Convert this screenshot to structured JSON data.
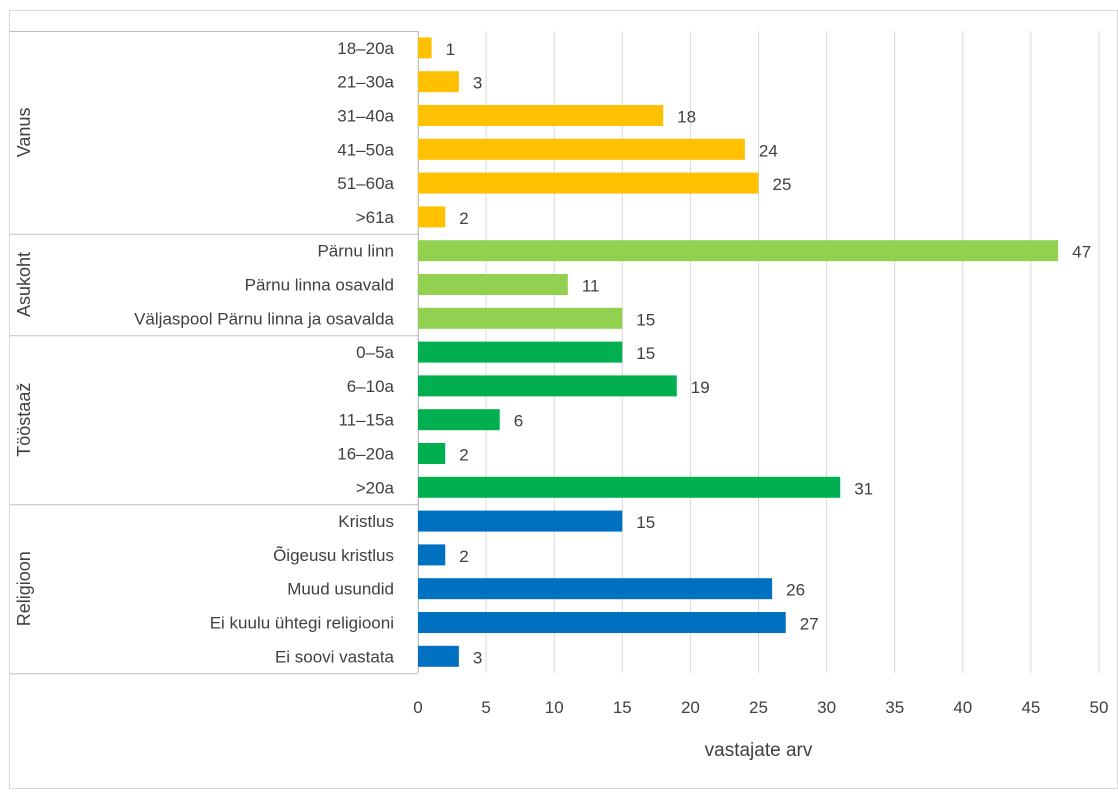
{
  "chart_data": {
    "type": "bar",
    "orientation": "horizontal",
    "title": "",
    "xlabel": "vastajate arv",
    "ylabel": "",
    "xlim": [
      0,
      50
    ],
    "xticks": [
      0,
      5,
      10,
      15,
      20,
      25,
      30,
      35,
      40,
      45,
      50
    ],
    "grid": true,
    "legend": "none",
    "groups": [
      {
        "name": "Vanus",
        "color": "#FFC000",
        "categories": [
          "18–20a",
          "21–30a",
          "31–40a",
          "41–50a",
          "51–60a",
          ">61a"
        ],
        "values": [
          1,
          3,
          18,
          24,
          25,
          2
        ]
      },
      {
        "name": "Asukoht",
        "color": "#92D050",
        "categories": [
          "Pärnu linn",
          "Pärnu linna osavald",
          "Väljaspool Pärnu linna ja osavalda"
        ],
        "values": [
          47,
          11,
          15
        ]
      },
      {
        "name": "Tööstaaž",
        "color": "#00B050",
        "categories": [
          "0–5a",
          "6–10a",
          "11–15a",
          "16–20a",
          ">20a"
        ],
        "values": [
          15,
          19,
          6,
          2,
          31
        ]
      },
      {
        "name": "Religioon",
        "color": "#0070C0",
        "categories": [
          "Kristlus",
          "Õigeusu kristlus",
          "Muud usundid",
          "Ei kuulu ühtegi religiooni",
          "Ei soovi vastata"
        ],
        "values": [
          15,
          2,
          26,
          27,
          3
        ]
      }
    ]
  }
}
